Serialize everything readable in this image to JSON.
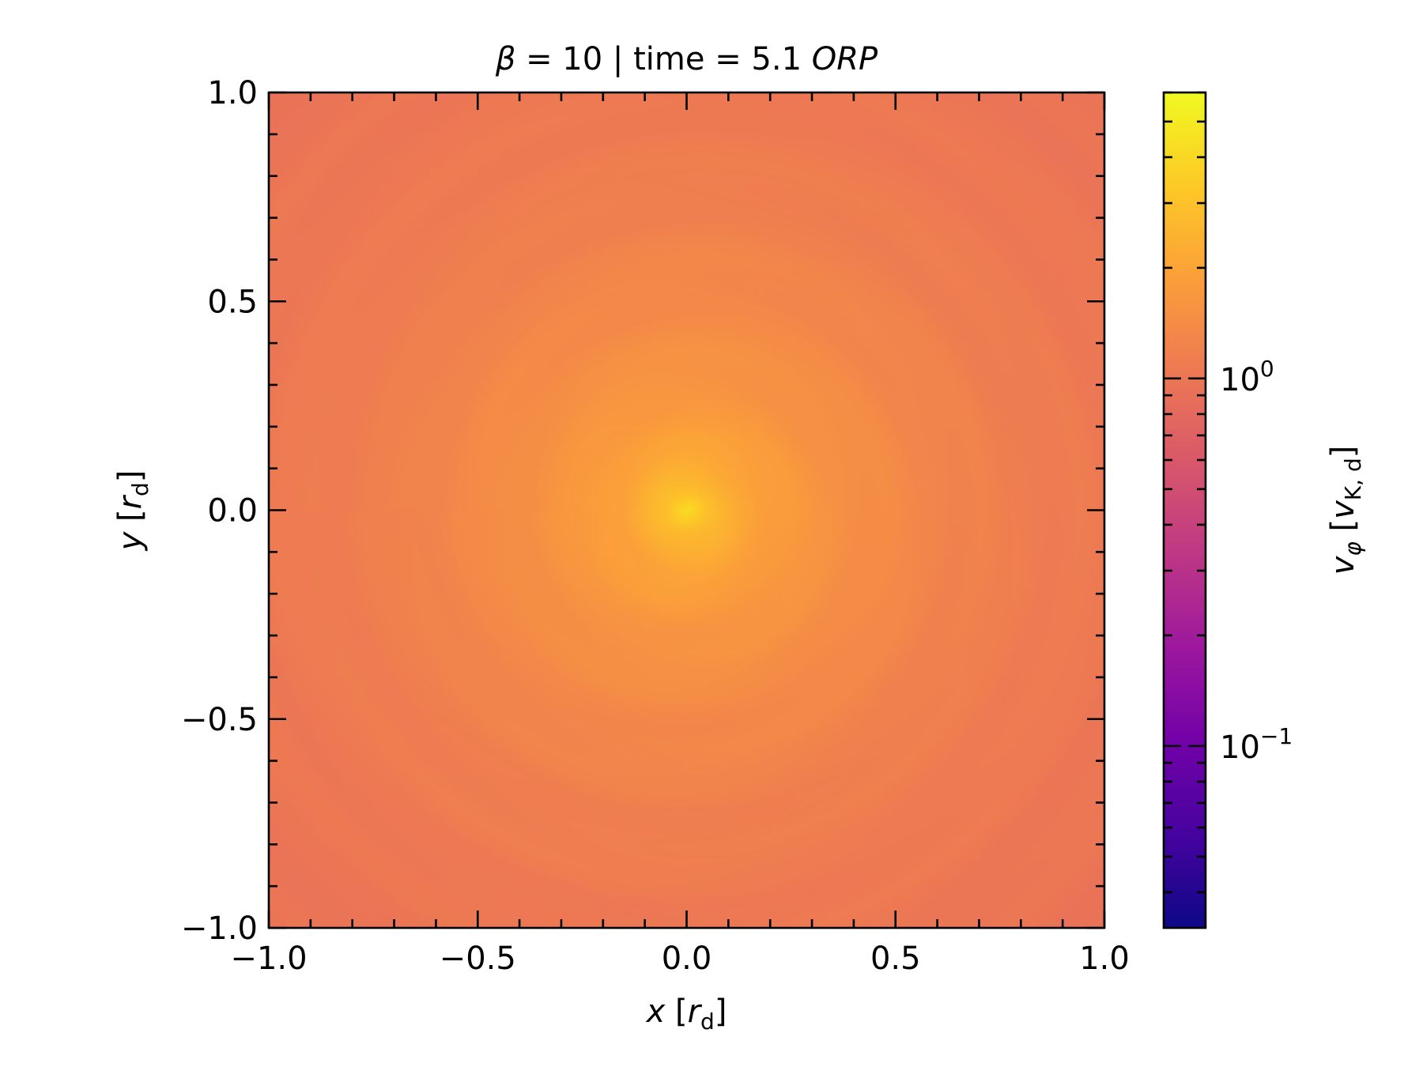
{
  "chart_data": {
    "type": "heatmap",
    "title": {
      "parts": [
        {
          "text": "β",
          "italic": true
        },
        {
          "text": " = 10 | time = 5.1 ",
          "italic": false
        },
        {
          "text": "ORP",
          "italic": true
        }
      ]
    },
    "xlabel": {
      "var": "x",
      "unit_var": "r",
      "unit_sub": "d"
    },
    "ylabel": {
      "var": "y",
      "unit_var": "r",
      "unit_sub": "d"
    },
    "xlim": [
      -1.0,
      1.0
    ],
    "ylim": [
      -1.0,
      1.0
    ],
    "xticks": [
      -1.0,
      -0.5,
      0.0,
      0.5,
      1.0
    ],
    "yticks": [
      -1.0,
      -0.5,
      0.0,
      0.5,
      1.0
    ],
    "xtick_labels": [
      "−1.0",
      "−0.5",
      "0.0",
      "0.5",
      "1.0"
    ],
    "ytick_labels": [
      "−1.0",
      "−0.5",
      "0.0",
      "0.5",
      "1.0"
    ],
    "minor_tick_step": 0.1,
    "field": {
      "description_units": "vφ in units of vK,d",
      "radial_profile": [
        {
          "r": 0.0,
          "value": 4.2
        },
        {
          "r": 0.05,
          "value": 2.8
        },
        {
          "r": 0.15,
          "value": 2.0
        },
        {
          "r": 0.3,
          "value": 1.6
        },
        {
          "r": 0.5,
          "value": 1.35
        },
        {
          "r": 0.75,
          "value": 1.15
        },
        {
          "r": 1.0,
          "value": 1.05
        },
        {
          "r": 1.42,
          "value": 0.95
        }
      ]
    },
    "colorbar": {
      "scale": "log",
      "cmap": "plasma",
      "range": [
        0.032,
        6.0
      ],
      "major_ticks": [
        0.1,
        1.0
      ],
      "major_labels": [
        {
          "base": "10",
          "exp": "−1"
        },
        {
          "base": "10",
          "exp": "0"
        }
      ],
      "label": {
        "var": "v",
        "var_sub": "φ",
        "unit_var": "v",
        "unit_sub": "K, d"
      }
    },
    "grid": false,
    "legend": "none",
    "colors": {
      "plasma": [
        "#0d0887",
        "#46039f",
        "#7201a8",
        "#9c179e",
        "#bd3786",
        "#d8576b",
        "#ed7953",
        "#fb9f3a",
        "#fdca26",
        "#f0f921"
      ]
    }
  }
}
